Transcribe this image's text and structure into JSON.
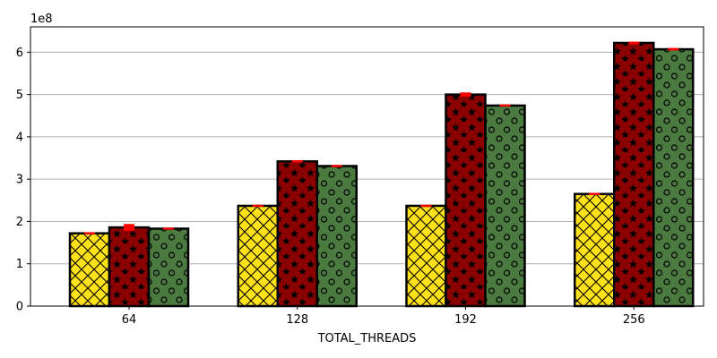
{
  "chart_data": {
    "type": "bar",
    "title": "",
    "xlabel": "TOTAL_THREADS",
    "ylabel": "",
    "y_scale_label": "1e8",
    "scale_factor": 100000000,
    "categories": [
      "64",
      "128",
      "192",
      "256"
    ],
    "ylim": [
      0,
      660000000
    ],
    "yticks": [
      0,
      100000000,
      200000000,
      300000000,
      400000000,
      500000000,
      600000000
    ],
    "ytick_labels": [
      "0",
      "1",
      "2",
      "3",
      "4",
      "5",
      "6"
    ],
    "grid": "y",
    "legend": "none",
    "series": [
      {
        "values": [
          172000000,
          237000000,
          237000000,
          265000000
        ],
        "errors": [
          0,
          1000000,
          1000000,
          1000000
        ],
        "color": "#ffe11a",
        "hatch": "crosshatch-x"
      },
      {
        "values": [
          186000000,
          342000000,
          500000000,
          622000000
        ],
        "errors": [
          8000000,
          1000000,
          5000000,
          3000000
        ],
        "color": "#8b0000",
        "hatch": "stars"
      },
      {
        "values": [
          183000000,
          331000000,
          474000000,
          607000000
        ],
        "errors": [
          0,
          1000000,
          2000000,
          3000000
        ],
        "color": "#4a7a40",
        "hatch": "circles"
      }
    ],
    "error_color": "#ff0000"
  }
}
